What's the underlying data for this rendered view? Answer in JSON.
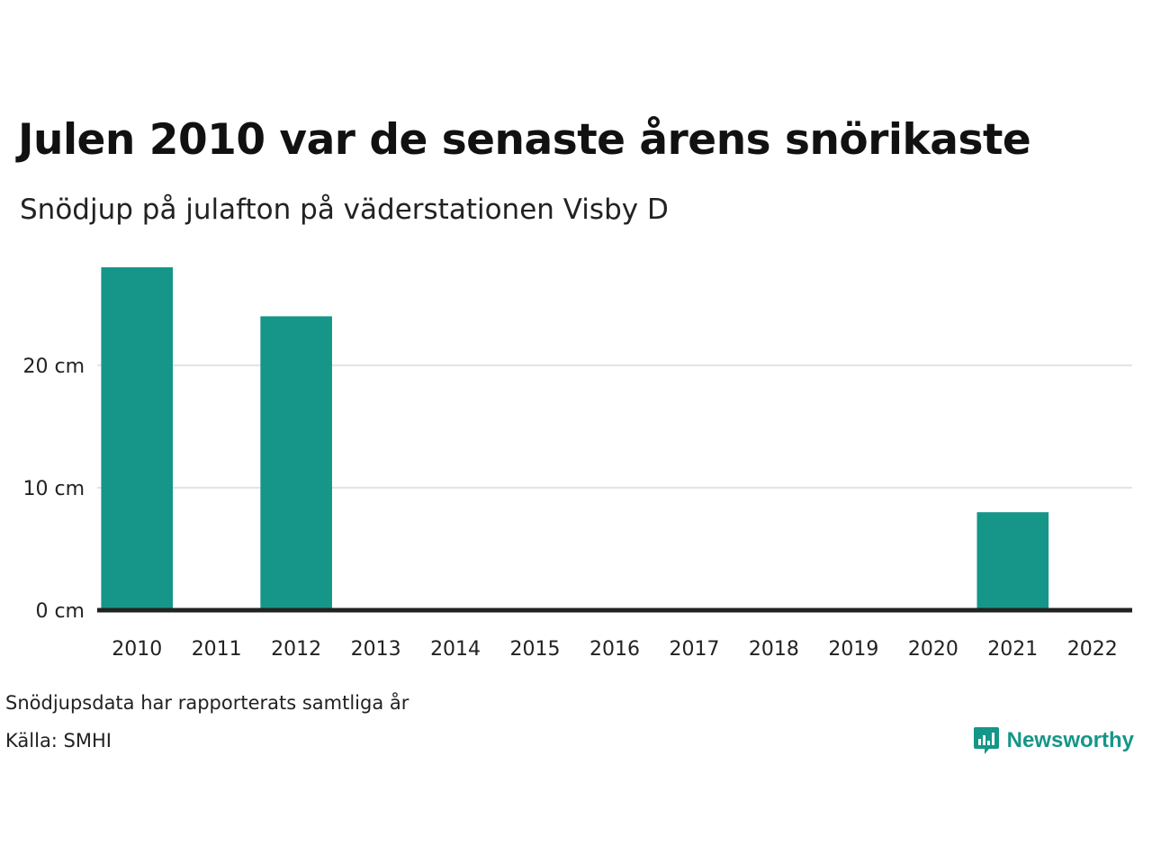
{
  "title": "Julen 2010 var de senaste årens snörikaste",
  "subtitle": "Snödjup på julafton på väderstationen Visby D",
  "notes": {
    "coverage": "Snödjupsdata har rapporterats samtliga år",
    "source": "Källa: SMHI"
  },
  "brand": {
    "name": "Newsworthy",
    "icon": "newsworthy-logo-icon",
    "color": "#159688"
  },
  "colors": {
    "bar": "#159688",
    "grid": "#e3e3e3",
    "baseline": "#222222"
  },
  "chart_data": {
    "type": "bar",
    "categories": [
      "2010",
      "2011",
      "2012",
      "2013",
      "2014",
      "2015",
      "2016",
      "2017",
      "2018",
      "2019",
      "2020",
      "2021",
      "2022"
    ],
    "values": [
      28,
      0,
      24,
      0,
      0,
      0,
      0,
      0,
      0,
      0,
      0,
      8,
      0
    ],
    "unit": "cm",
    "ylim": [
      0,
      28
    ],
    "yticks": [
      0,
      10,
      20
    ],
    "ytick_labels": [
      "0 cm",
      "10 cm",
      "20 cm"
    ],
    "grid": true,
    "legend": "none"
  }
}
